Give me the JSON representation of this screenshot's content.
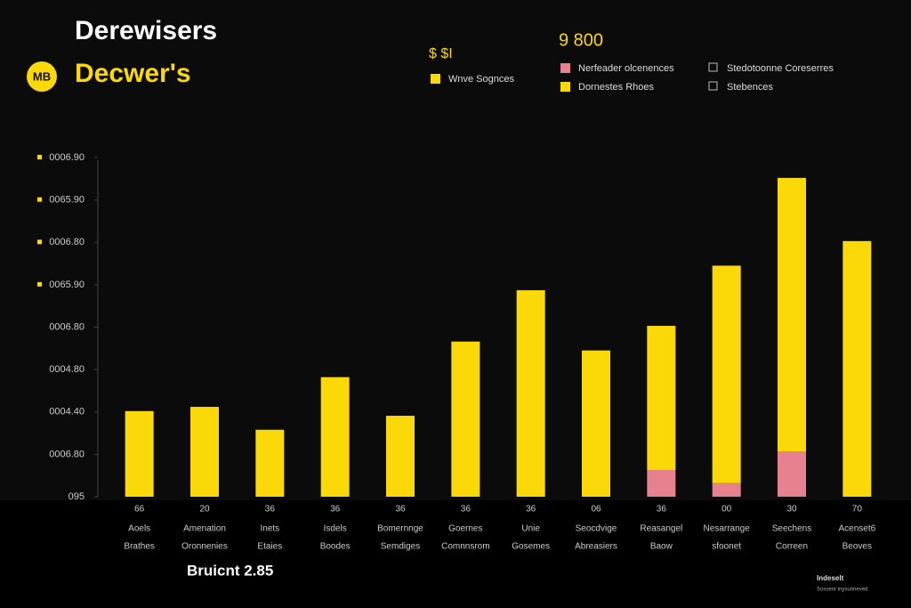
{
  "header": {
    "title": "Derewisers",
    "logo": "MB",
    "brand": "Decwer's",
    "badge": "$ $I",
    "figure": "9 800"
  },
  "chart_data": {
    "type": "bar",
    "stacked": true,
    "categories": [
      {
        "number": "66",
        "line1": "Aoels",
        "line2": "Brathes"
      },
      {
        "number": "20",
        "line1": "Amenation",
        "line2": "Oronnenies"
      },
      {
        "number": "36",
        "line1": "Inets",
        "line2": "Etaies"
      },
      {
        "number": "36",
        "line1": "Isdels",
        "line2": "Boodes"
      },
      {
        "number": "36",
        "line1": "Bomernnge",
        "line2": "Semdiges"
      },
      {
        "number": "36",
        "line1": "Goernes",
        "line2": "Comnnsrom"
      },
      {
        "number": "36",
        "line1": "Unie",
        "line2": "Gosemes"
      },
      {
        "number": "06",
        "line1": "Seocdvige",
        "line2": "Abreasiers"
      },
      {
        "number": "36",
        "line1": "Reasangel",
        "line2": "Baow"
      },
      {
        "number": "00",
        "line1": "Nesarrange",
        "line2": "sfoonet"
      },
      {
        "number": "30",
        "line1": "Seechens",
        "line2": "Correen"
      },
      {
        "number": "70",
        "line1": "Acenset6",
        "line2": "Beoves"
      }
    ],
    "series": [
      {
        "name": "Nerfeader olcenences",
        "color": "#e8818f",
        "values": [
          0,
          0,
          0,
          0,
          0,
          0,
          0,
          0,
          0.63,
          0.32,
          1.07,
          0
        ]
      },
      {
        "name": "Wnve Sognces",
        "color": "#fbd808",
        "values": [
          2.02,
          2.12,
          1.58,
          2.82,
          1.91,
          3.66,
          4.87,
          3.45,
          3.4,
          5.13,
          6.45,
          6.03
        ]
      }
    ],
    "legend_extra": [
      {
        "name": "Dornestes Rhoes",
        "color": "#fbd808"
      },
      {
        "name": "Stedotoonne Coreserres",
        "color": "none"
      },
      {
        "name": "Stebences",
        "color": "none"
      }
    ],
    "ylim": [
      0,
      8
    ],
    "yticks": [
      {
        "value": 0,
        "label": "095"
      },
      {
        "value": 1,
        "label": "0006.80"
      },
      {
        "value": 2,
        "label": "0004.40"
      },
      {
        "value": 3,
        "label": "0004.80"
      },
      {
        "value": 4,
        "label": "0006.80"
      },
      {
        "value": 5,
        "label": "0065.90"
      },
      {
        "value": 6,
        "label": "0006.80"
      },
      {
        "value": 7,
        "label": "0065.90"
      },
      {
        "value": 8,
        "label": "0006.90"
      }
    ]
  },
  "footer": {
    "caption": "Bruicnt 2.85",
    "note_title": "Indeselt",
    "note": "Sossenr inysunneved"
  }
}
